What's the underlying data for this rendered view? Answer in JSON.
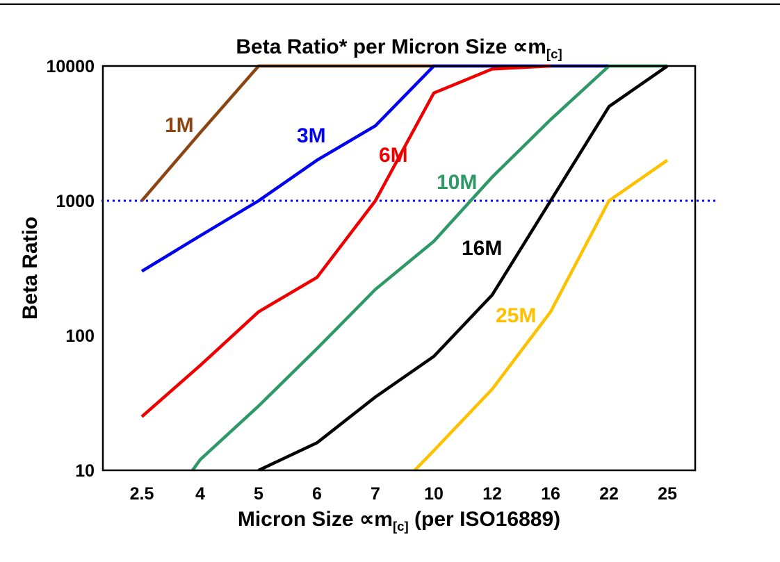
{
  "chart": {
    "title": {
      "pre": "Beta Ratio* per Micron Size ",
      "sym": "∝m",
      "sub": "[c]"
    },
    "xlabel": {
      "pre": "Micron Size ",
      "sym": "∝m",
      "sub": "[c]",
      "post": " (per ISO16889)"
    },
    "ylabel": "Beta Ratio"
  },
  "chart_data": {
    "type": "line",
    "title": "Beta Ratio* per Micron Size ∝m[c]",
    "xlabel": "Micron Size ∝m[c] (per ISO16889)",
    "ylabel": "Beta Ratio",
    "x_type": "category",
    "categories": [
      "2.5",
      "4",
      "5",
      "6",
      "7",
      "10",
      "12",
      "16",
      "22",
      "25"
    ],
    "y_scale": "log",
    "ylim": [
      10,
      10000
    ],
    "y_ticks": [
      10000,
      1000,
      100,
      10
    ],
    "grid": false,
    "legend": "inline-labels",
    "series": [
      {
        "name": "1M",
        "color": "#8b4513",
        "values": [
          1000,
          3200,
          10000,
          10000,
          10000,
          10000,
          null,
          null,
          null,
          null
        ]
      },
      {
        "name": "3M",
        "color": "#0000ee",
        "values": [
          300,
          550,
          1000,
          2000,
          3600,
          10000,
          10000,
          10000,
          10000,
          null
        ]
      },
      {
        "name": "6M",
        "color": "#ee0000",
        "values": [
          25,
          60,
          150,
          270,
          1000,
          6300,
          9500,
          10000,
          null,
          null
        ]
      },
      {
        "name": "10M",
        "color": "#2e9966",
        "values": [
          3,
          12,
          30,
          80,
          220,
          500,
          1500,
          4000,
          10000,
          10000
        ]
      },
      {
        "name": "16M",
        "color": "#000000",
        "values": [
          null,
          null,
          10,
          16,
          35,
          70,
          200,
          1000,
          5000,
          10000
        ]
      },
      {
        "name": "25M",
        "color": "#ffc000",
        "values": [
          null,
          null,
          null,
          null,
          5,
          14,
          40,
          150,
          1000,
          2000
        ]
      }
    ],
    "reference_line": {
      "value": 1000,
      "color": "#0000ff",
      "style": "dotted"
    }
  }
}
